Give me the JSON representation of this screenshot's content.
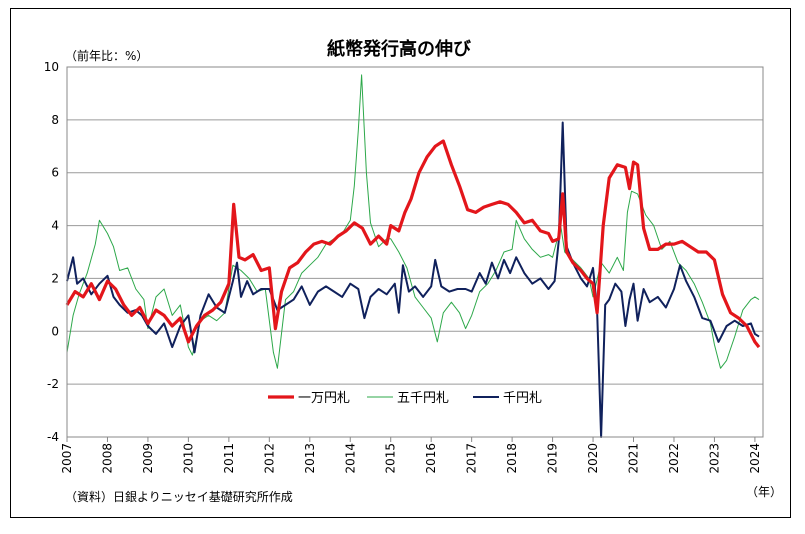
{
  "chart_data": {
    "type": "line",
    "title": "紙幣発行高の伸び",
    "unit_label": "（前年比：%）",
    "x_unit_label": "（年）",
    "source_note": "（資料）日銀よりニッセイ基礎研究所作成",
    "yticks": [
      "10",
      "8",
      "6",
      "4",
      "2",
      "0",
      "-2",
      "-4"
    ],
    "ylim": [
      -4,
      10
    ],
    "xlim": [
      2007.0,
      2024.2
    ],
    "x_ticks": [
      "2007",
      "2008",
      "2009",
      "2010",
      "2011",
      "2012",
      "2013",
      "2014",
      "2015",
      "2016",
      "2017",
      "2018",
      "2019",
      "2020",
      "2021",
      "2022",
      "2023",
      "2024"
    ],
    "grid": "horizontal",
    "legend_position": "center",
    "series": [
      {
        "name": "一万円札",
        "color": "#e3161b",
        "points": [
          [
            2007.0,
            1.0
          ],
          [
            2007.2,
            1.5
          ],
          [
            2007.4,
            1.3
          ],
          [
            2007.6,
            1.8
          ],
          [
            2007.8,
            1.2
          ],
          [
            2008.0,
            1.9
          ],
          [
            2008.2,
            1.6
          ],
          [
            2008.4,
            1.0
          ],
          [
            2008.6,
            0.6
          ],
          [
            2008.8,
            0.9
          ],
          [
            2009.0,
            0.3
          ],
          [
            2009.2,
            0.8
          ],
          [
            2009.4,
            0.6
          ],
          [
            2009.6,
            0.2
          ],
          [
            2009.8,
            0.5
          ],
          [
            2010.0,
            -0.4
          ],
          [
            2010.2,
            0.2
          ],
          [
            2010.4,
            0.6
          ],
          [
            2010.6,
            0.8
          ],
          [
            2010.8,
            1.1
          ],
          [
            2011.0,
            1.8
          ],
          [
            2011.12,
            4.8
          ],
          [
            2011.25,
            2.8
          ],
          [
            2011.4,
            2.7
          ],
          [
            2011.6,
            2.9
          ],
          [
            2011.8,
            2.3
          ],
          [
            2012.0,
            2.4
          ],
          [
            2012.15,
            0.1
          ],
          [
            2012.3,
            1.5
          ],
          [
            2012.5,
            2.4
          ],
          [
            2012.7,
            2.6
          ],
          [
            2012.9,
            3.0
          ],
          [
            2013.1,
            3.3
          ],
          [
            2013.3,
            3.4
          ],
          [
            2013.5,
            3.3
          ],
          [
            2013.7,
            3.6
          ],
          [
            2013.9,
            3.8
          ],
          [
            2014.1,
            4.1
          ],
          [
            2014.3,
            3.9
          ],
          [
            2014.5,
            3.3
          ],
          [
            2014.7,
            3.6
          ],
          [
            2014.9,
            3.3
          ],
          [
            2015.0,
            4.0
          ],
          [
            2015.2,
            3.8
          ],
          [
            2015.35,
            4.5
          ],
          [
            2015.5,
            5.0
          ],
          [
            2015.7,
            6.0
          ],
          [
            2015.9,
            6.6
          ],
          [
            2016.1,
            7.0
          ],
          [
            2016.3,
            7.2
          ],
          [
            2016.5,
            6.3
          ],
          [
            2016.7,
            5.5
          ],
          [
            2016.9,
            4.6
          ],
          [
            2017.1,
            4.5
          ],
          [
            2017.3,
            4.7
          ],
          [
            2017.5,
            4.8
          ],
          [
            2017.7,
            4.9
          ],
          [
            2017.9,
            4.8
          ],
          [
            2018.1,
            4.5
          ],
          [
            2018.3,
            4.1
          ],
          [
            2018.5,
            4.2
          ],
          [
            2018.7,
            3.8
          ],
          [
            2018.9,
            3.7
          ],
          [
            2019.0,
            3.4
          ],
          [
            2019.15,
            3.5
          ],
          [
            2019.25,
            5.2
          ],
          [
            2019.35,
            3.0
          ],
          [
            2019.5,
            2.6
          ],
          [
            2019.7,
            2.3
          ],
          [
            2019.85,
            2.0
          ],
          [
            2020.0,
            1.8
          ],
          [
            2020.1,
            0.7
          ],
          [
            2020.25,
            4.0
          ],
          [
            2020.4,
            5.8
          ],
          [
            2020.6,
            6.3
          ],
          [
            2020.8,
            6.2
          ],
          [
            2020.9,
            5.4
          ],
          [
            2021.0,
            6.4
          ],
          [
            2021.1,
            6.3
          ],
          [
            2021.25,
            3.9
          ],
          [
            2021.4,
            3.1
          ],
          [
            2021.6,
            3.1
          ],
          [
            2021.8,
            3.3
          ],
          [
            2022.0,
            3.3
          ],
          [
            2022.2,
            3.4
          ],
          [
            2022.4,
            3.2
          ],
          [
            2022.6,
            3.0
          ],
          [
            2022.8,
            3.0
          ],
          [
            2023.0,
            2.7
          ],
          [
            2023.2,
            1.4
          ],
          [
            2023.4,
            0.7
          ],
          [
            2023.6,
            0.5
          ],
          [
            2023.8,
            0.2
          ],
          [
            2024.0,
            -0.4
          ],
          [
            2024.1,
            -0.6
          ]
        ]
      },
      {
        "name": "五千円札",
        "color": "#2da84a",
        "points": [
          [
            2007.0,
            -0.8
          ],
          [
            2007.15,
            0.6
          ],
          [
            2007.3,
            1.4
          ],
          [
            2007.5,
            2.2
          ],
          [
            2007.7,
            3.3
          ],
          [
            2007.8,
            4.2
          ],
          [
            2008.0,
            3.7
          ],
          [
            2008.15,
            3.2
          ],
          [
            2008.3,
            2.3
          ],
          [
            2008.5,
            2.4
          ],
          [
            2008.7,
            1.6
          ],
          [
            2008.9,
            1.2
          ],
          [
            2009.0,
            0.1
          ],
          [
            2009.2,
            1.3
          ],
          [
            2009.4,
            1.6
          ],
          [
            2009.6,
            0.6
          ],
          [
            2009.8,
            1.0
          ],
          [
            2010.0,
            -0.6
          ],
          [
            2010.1,
            -0.9
          ],
          [
            2010.3,
            0.4
          ],
          [
            2010.5,
            0.6
          ],
          [
            2010.7,
            0.4
          ],
          [
            2010.9,
            0.7
          ],
          [
            2011.1,
            2.5
          ],
          [
            2011.3,
            2.3
          ],
          [
            2011.5,
            2.0
          ],
          [
            2011.7,
            1.5
          ],
          [
            2011.9,
            1.6
          ],
          [
            2012.1,
            -0.8
          ],
          [
            2012.2,
            -1.4
          ],
          [
            2012.4,
            1.2
          ],
          [
            2012.6,
            1.5
          ],
          [
            2012.8,
            2.2
          ],
          [
            2013.0,
            2.5
          ],
          [
            2013.2,
            2.8
          ],
          [
            2013.4,
            3.3
          ],
          [
            2013.6,
            3.5
          ],
          [
            2013.8,
            3.7
          ],
          [
            2014.0,
            4.2
          ],
          [
            2014.1,
            5.5
          ],
          [
            2014.2,
            7.6
          ],
          [
            2014.28,
            9.7
          ],
          [
            2014.4,
            6.0
          ],
          [
            2014.5,
            4.1
          ],
          [
            2014.7,
            3.2
          ],
          [
            2014.9,
            3.5
          ],
          [
            2015.0,
            3.5
          ],
          [
            2015.2,
            3.0
          ],
          [
            2015.4,
            2.4
          ],
          [
            2015.6,
            1.3
          ],
          [
            2015.8,
            0.9
          ],
          [
            2016.0,
            0.5
          ],
          [
            2016.15,
            -0.4
          ],
          [
            2016.3,
            0.7
          ],
          [
            2016.5,
            1.1
          ],
          [
            2016.7,
            0.7
          ],
          [
            2016.85,
            0.1
          ],
          [
            2017.0,
            0.6
          ],
          [
            2017.2,
            1.5
          ],
          [
            2017.4,
            1.8
          ],
          [
            2017.6,
            2.3
          ],
          [
            2017.8,
            3.0
          ],
          [
            2018.0,
            3.1
          ],
          [
            2018.1,
            4.2
          ],
          [
            2018.3,
            3.5
          ],
          [
            2018.5,
            3.1
          ],
          [
            2018.7,
            2.8
          ],
          [
            2018.9,
            2.9
          ],
          [
            2019.0,
            2.8
          ],
          [
            2019.2,
            4.0
          ],
          [
            2019.3,
            3.0
          ],
          [
            2019.5,
            2.7
          ],
          [
            2019.7,
            2.4
          ],
          [
            2019.9,
            2.0
          ],
          [
            2020.0,
            1.3
          ],
          [
            2020.2,
            2.6
          ],
          [
            2020.4,
            2.2
          ],
          [
            2020.6,
            2.8
          ],
          [
            2020.75,
            2.3
          ],
          [
            2020.85,
            4.5
          ],
          [
            2020.95,
            5.3
          ],
          [
            2021.1,
            5.2
          ],
          [
            2021.3,
            4.4
          ],
          [
            2021.5,
            4.0
          ],
          [
            2021.7,
            3.1
          ],
          [
            2021.9,
            3.4
          ],
          [
            2022.1,
            2.6
          ],
          [
            2022.3,
            2.3
          ],
          [
            2022.5,
            1.8
          ],
          [
            2022.7,
            1.1
          ],
          [
            2022.9,
            0.3
          ],
          [
            2023.0,
            -0.5
          ],
          [
            2023.15,
            -1.4
          ],
          [
            2023.3,
            -1.1
          ],
          [
            2023.5,
            -0.2
          ],
          [
            2023.7,
            0.8
          ],
          [
            2023.9,
            1.2
          ],
          [
            2024.0,
            1.3
          ],
          [
            2024.1,
            1.2
          ]
        ]
      },
      {
        "name": "千円札",
        "color": "#10215c",
        "points": [
          [
            2007.0,
            1.9
          ],
          [
            2007.15,
            2.8
          ],
          [
            2007.25,
            1.8
          ],
          [
            2007.4,
            2.0
          ],
          [
            2007.6,
            1.4
          ],
          [
            2007.8,
            1.8
          ],
          [
            2008.0,
            2.1
          ],
          [
            2008.15,
            1.3
          ],
          [
            2008.3,
            1.0
          ],
          [
            2008.5,
            0.7
          ],
          [
            2008.7,
            0.8
          ],
          [
            2008.85,
            0.6
          ],
          [
            2009.0,
            0.2
          ],
          [
            2009.2,
            -0.1
          ],
          [
            2009.4,
            0.3
          ],
          [
            2009.6,
            -0.6
          ],
          [
            2009.8,
            0.2
          ],
          [
            2010.0,
            0.6
          ],
          [
            2010.15,
            -0.8
          ],
          [
            2010.3,
            0.6
          ],
          [
            2010.5,
            1.4
          ],
          [
            2010.7,
            0.9
          ],
          [
            2010.9,
            0.7
          ],
          [
            2011.1,
            1.9
          ],
          [
            2011.2,
            2.6
          ],
          [
            2011.3,
            1.3
          ],
          [
            2011.45,
            1.9
          ],
          [
            2011.6,
            1.4
          ],
          [
            2011.8,
            1.6
          ],
          [
            2012.0,
            1.6
          ],
          [
            2012.2,
            0.8
          ],
          [
            2012.4,
            1.0
          ],
          [
            2012.6,
            1.2
          ],
          [
            2012.8,
            1.7
          ],
          [
            2013.0,
            1.0
          ],
          [
            2013.2,
            1.5
          ],
          [
            2013.4,
            1.7
          ],
          [
            2013.6,
            1.5
          ],
          [
            2013.8,
            1.3
          ],
          [
            2014.0,
            1.8
          ],
          [
            2014.2,
            1.6
          ],
          [
            2014.35,
            0.5
          ],
          [
            2014.5,
            1.3
          ],
          [
            2014.7,
            1.6
          ],
          [
            2014.9,
            1.4
          ],
          [
            2015.1,
            1.8
          ],
          [
            2015.2,
            0.7
          ],
          [
            2015.3,
            2.5
          ],
          [
            2015.45,
            1.5
          ],
          [
            2015.6,
            1.7
          ],
          [
            2015.8,
            1.3
          ],
          [
            2016.0,
            1.7
          ],
          [
            2016.1,
            2.7
          ],
          [
            2016.25,
            1.7
          ],
          [
            2016.45,
            1.5
          ],
          [
            2016.65,
            1.6
          ],
          [
            2016.85,
            1.6
          ],
          [
            2017.0,
            1.5
          ],
          [
            2017.2,
            2.2
          ],
          [
            2017.35,
            1.8
          ],
          [
            2017.5,
            2.6
          ],
          [
            2017.65,
            2.0
          ],
          [
            2017.8,
            2.7
          ],
          [
            2017.95,
            2.2
          ],
          [
            2018.1,
            2.8
          ],
          [
            2018.3,
            2.2
          ],
          [
            2018.5,
            1.8
          ],
          [
            2018.7,
            2.0
          ],
          [
            2018.9,
            1.6
          ],
          [
            2019.05,
            1.9
          ],
          [
            2019.15,
            3.4
          ],
          [
            2019.25,
            7.9
          ],
          [
            2019.35,
            3.2
          ],
          [
            2019.5,
            2.6
          ],
          [
            2019.7,
            2.0
          ],
          [
            2019.85,
            1.7
          ],
          [
            2020.0,
            2.4
          ],
          [
            2020.1,
            0.8
          ],
          [
            2020.2,
            -4.0
          ],
          [
            2020.3,
            1.0
          ],
          [
            2020.4,
            1.2
          ],
          [
            2020.55,
            1.8
          ],
          [
            2020.7,
            1.5
          ],
          [
            2020.8,
            0.2
          ],
          [
            2020.9,
            1.2
          ],
          [
            2021.0,
            1.8
          ],
          [
            2021.1,
            0.4
          ],
          [
            2021.25,
            1.6
          ],
          [
            2021.4,
            1.1
          ],
          [
            2021.6,
            1.3
          ],
          [
            2021.8,
            0.9
          ],
          [
            2022.0,
            1.6
          ],
          [
            2022.15,
            2.5
          ],
          [
            2022.3,
            1.9
          ],
          [
            2022.5,
            1.3
          ],
          [
            2022.7,
            0.5
          ],
          [
            2022.9,
            0.4
          ],
          [
            2023.1,
            -0.4
          ],
          [
            2023.3,
            0.2
          ],
          [
            2023.5,
            0.4
          ],
          [
            2023.7,
            0.2
          ],
          [
            2023.9,
            0.3
          ],
          [
            2024.0,
            -0.1
          ],
          [
            2024.1,
            -0.2
          ]
        ]
      }
    ]
  }
}
